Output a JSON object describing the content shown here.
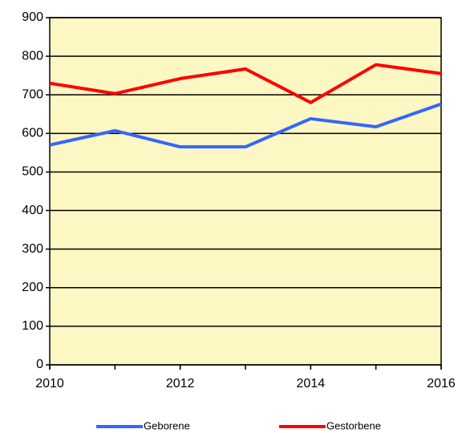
{
  "chart_data": {
    "type": "line",
    "x": [
      2010,
      2011,
      2012,
      2013,
      2014,
      2015,
      2016
    ],
    "series": [
      {
        "name": "Geborene",
        "color": "#3366ff",
        "values": [
          570,
          607,
          565,
          565,
          638,
          617,
          676
        ]
      },
      {
        "name": "Gestorbene",
        "color": "#ff0000",
        "values": [
          730,
          703,
          742,
          767,
          680,
          778,
          755
        ]
      }
    ],
    "xlim": [
      2010,
      2016
    ],
    "xticks": [
      2010,
      2012,
      2014,
      2016
    ],
    "ylim": [
      0,
      900
    ],
    "yticks": [
      0,
      100,
      200,
      300,
      400,
      500,
      600,
      700,
      800,
      900
    ],
    "grid": true,
    "legend": "bottom",
    "background": "#fdf7c3"
  }
}
